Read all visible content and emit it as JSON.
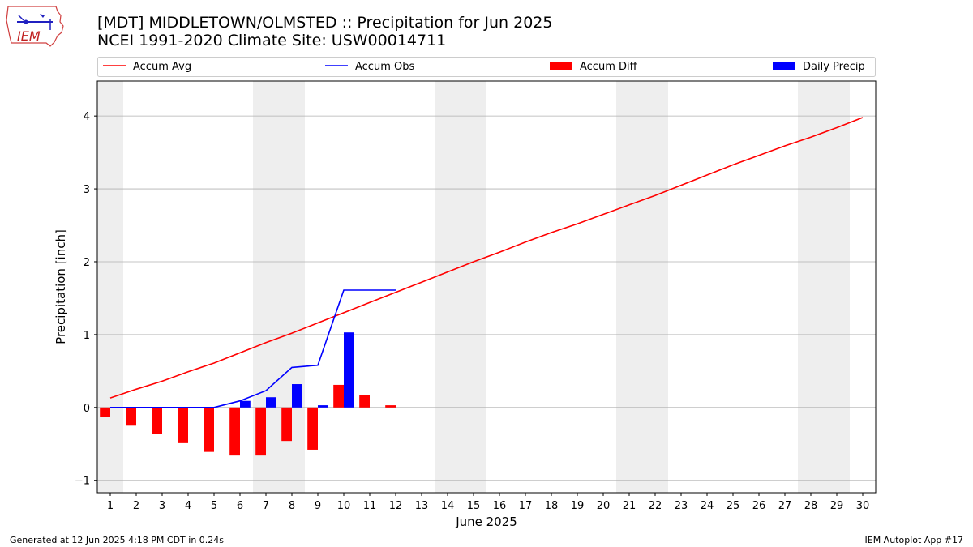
{
  "title": "[MDT] MIDDLETOWN/OLMSTED :: Precipitation for Jun 2025",
  "subtitle": "NCEI 1991-2020 Climate Site: USW00014711",
  "logo_text": "IEM",
  "footer_left": "Generated at 12 Jun 2025 4:18 PM CDT in 0.24s",
  "footer_right": "IEM Autoplot App #17",
  "colors": {
    "accum_avg": "#ff0000",
    "accum_obs": "#0000ff",
    "accum_diff": "#ff0000",
    "daily_precip": "#0000ff",
    "weekend_shade": "#eeeeee",
    "grid": "#b0b0b0"
  },
  "chart_data": {
    "type": "bar",
    "xlabel": "June 2025",
    "ylabel": "Precipitation [inch]",
    "xlim": [
      0.5,
      30.5
    ],
    "ylim": [
      -1.17,
      4.48
    ],
    "grid": "horizontal",
    "legend_placement": "top, above plot",
    "x": [
      1,
      2,
      3,
      4,
      5,
      6,
      7,
      8,
      9,
      10,
      11,
      12,
      13,
      14,
      15,
      16,
      17,
      18,
      19,
      20,
      21,
      22,
      23,
      24,
      25,
      26,
      27,
      28,
      29,
      30
    ],
    "x_tick_labels": [
      "1",
      "2",
      "3",
      "4",
      "5",
      "6",
      "7",
      "8",
      "9",
      "10",
      "11",
      "12",
      "13",
      "14",
      "15",
      "16",
      "17",
      "18",
      "19",
      "20",
      "21",
      "22",
      "23",
      "24",
      "25",
      "26",
      "27",
      "28",
      "29",
      "30"
    ],
    "y_ticks": [
      -1,
      0,
      1,
      2,
      3,
      4
    ],
    "y_tick_labels": [
      "−1",
      "0",
      "1",
      "2",
      "3",
      "4"
    ],
    "weekend_days": [
      1,
      7,
      8,
      14,
      15,
      21,
      22,
      28,
      29
    ],
    "series": [
      {
        "name": "Accum Avg",
        "kind": "line",
        "x": [
          1,
          2,
          3,
          4,
          5,
          6,
          7,
          8,
          9,
          10,
          11,
          12,
          13,
          14,
          15,
          16,
          17,
          18,
          19,
          20,
          21,
          22,
          23,
          24,
          25,
          26,
          27,
          28,
          29,
          30
        ],
        "values": [
          0.13,
          0.25,
          0.36,
          0.49,
          0.61,
          0.75,
          0.89,
          1.02,
          1.16,
          1.3,
          1.44,
          1.58,
          1.72,
          1.86,
          2.0,
          2.13,
          2.27,
          2.4,
          2.52,
          2.65,
          2.78,
          2.91,
          3.05,
          3.19,
          3.33,
          3.46,
          3.59,
          3.71,
          3.84,
          3.98
        ]
      },
      {
        "name": "Accum Obs",
        "kind": "line",
        "x": [
          1,
          2,
          3,
          4,
          5,
          6,
          7,
          8,
          9,
          10,
          11,
          12
        ],
        "values": [
          0,
          0,
          0,
          0,
          0,
          0.09,
          0.23,
          0.55,
          0.58,
          1.61,
          1.61,
          1.61
        ]
      },
      {
        "name": "Accum Diff",
        "kind": "bar",
        "x": [
          1,
          2,
          3,
          4,
          5,
          6,
          7,
          8,
          9,
          10,
          11,
          12
        ],
        "values": [
          -0.13,
          -0.25,
          -0.36,
          -0.49,
          -0.61,
          -0.66,
          -0.66,
          -0.46,
          -0.58,
          0.31,
          0.17,
          0.03
        ]
      },
      {
        "name": "Daily Precip",
        "kind": "bar",
        "x": [
          1,
          2,
          3,
          4,
          5,
          6,
          7,
          8,
          9,
          10,
          11,
          12
        ],
        "values": [
          0,
          0,
          0,
          0,
          0,
          0.09,
          0.14,
          0.32,
          0.03,
          1.03,
          0,
          0
        ]
      }
    ]
  }
}
